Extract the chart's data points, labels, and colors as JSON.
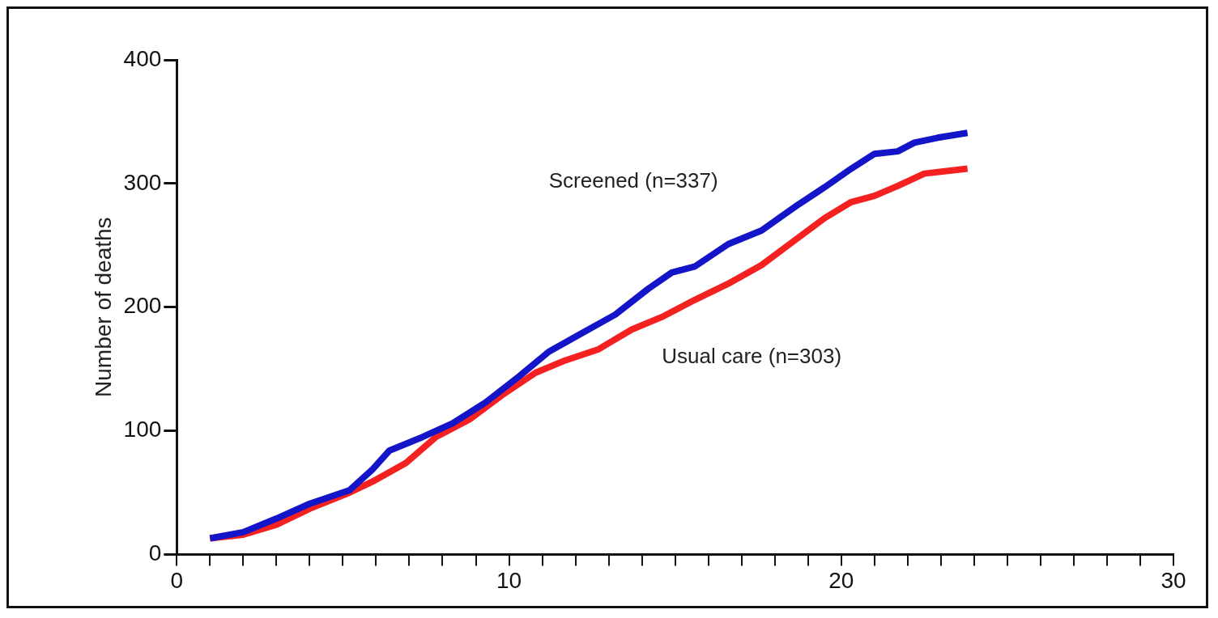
{
  "chart_data": {
    "type": "line",
    "ylabel": "Number of deaths",
    "xlim": [
      0,
      30
    ],
    "xticks": [
      0,
      {
        "value": 1,
        "label": null
      },
      {
        "value": 2,
        "label": null
      },
      {
        "value": 3,
        "label": null
      },
      {
        "value": 4,
        "label": null
      },
      {
        "value": 5,
        "label": null
      },
      {
        "value": 6,
        "label": null
      },
      {
        "value": 7,
        "label": null
      },
      {
        "value": 8,
        "label": null
      },
      {
        "value": 9,
        "label": null
      },
      10,
      {
        "value": 11,
        "label": null
      },
      {
        "value": 12,
        "label": null
      },
      {
        "value": 13,
        "label": null
      },
      {
        "value": 14,
        "label": null
      },
      {
        "value": 15,
        "label": null
      },
      {
        "value": 16,
        "label": null
      },
      {
        "value": 17,
        "label": null
      },
      {
        "value": 18,
        "label": null
      },
      {
        "value": 19,
        "label": null
      },
      20,
      {
        "value": 21,
        "label": null
      },
      {
        "value": 22,
        "label": null
      },
      {
        "value": 23,
        "label": null
      },
      {
        "value": 24,
        "label": null
      },
      {
        "value": 25,
        "label": null
      },
      {
        "value": 26,
        "label": null
      },
      {
        "value": 27,
        "label": null
      },
      {
        "value": 28,
        "label": null
      },
      {
        "value": 29,
        "label": null
      },
      30
    ],
    "ylim": [
      0,
      400
    ],
    "yticks": [
      0,
      100,
      200,
      300,
      400
    ],
    "grid": false,
    "legend": false,
    "marker": "none",
    "line_style": "solid",
    "series": [
      {
        "name": "Screened (n=337)",
        "color": "#1414c8",
        "x": [
          1.0,
          2.0,
          3.0,
          4.0,
          5.2,
          5.9,
          6.4,
          7.4,
          8.3,
          9.3,
          10.3,
          11.2,
          12.2,
          13.2,
          14.2,
          14.9,
          15.6,
          16.6,
          17.6,
          18.6,
          19.5,
          20.3,
          21.0,
          21.7,
          22.2,
          22.9,
          23.8
        ],
        "values": [
          13,
          18,
          29,
          41,
          52,
          69,
          84,
          95,
          106,
          123,
          144,
          164,
          179,
          194,
          215,
          228,
          233,
          251,
          262,
          281,
          297,
          312,
          324,
          326,
          333,
          337,
          341
        ]
      },
      {
        "name": "Usual care (n=303)",
        "color": "#f52020",
        "x": [
          1.0,
          2.0,
          3.0,
          4.0,
          5.2,
          5.9,
          6.9,
          7.8,
          8.8,
          9.8,
          10.8,
          11.7,
          12.7,
          13.7,
          14.6,
          15.6,
          16.6,
          17.6,
          18.6,
          19.5,
          20.3,
          21.0,
          21.7,
          22.5,
          23.8
        ],
        "values": [
          13,
          16,
          24,
          37,
          50,
          59,
          74,
          95,
          109,
          129,
          147,
          157,
          166,
          182,
          192,
          206,
          219,
          234,
          254,
          272,
          285,
          290,
          298,
          308,
          312
        ]
      }
    ]
  }
}
